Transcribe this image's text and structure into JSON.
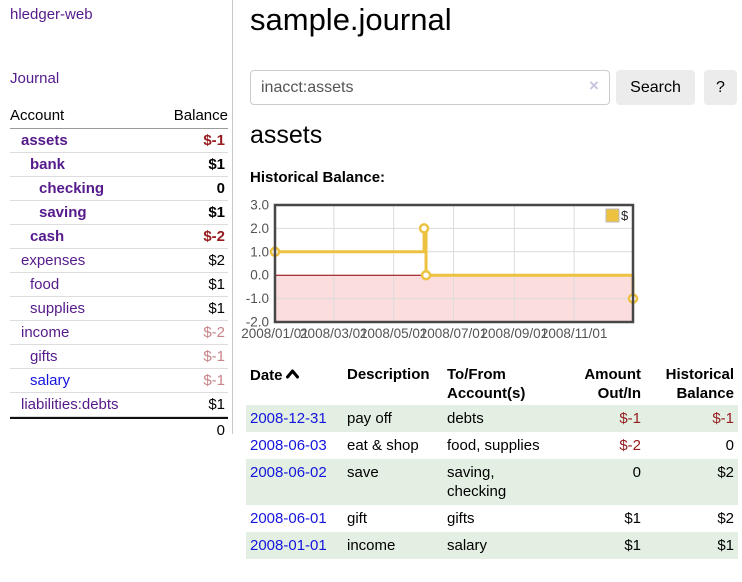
{
  "app": {
    "title": "hledger-web"
  },
  "sidebar": {
    "journal_link": "Journal",
    "accounts_table": {
      "headers": {
        "account": "Account",
        "balance": "Balance"
      },
      "rows": [
        {
          "name": "assets",
          "balance": "$-1"
        },
        {
          "name": "bank",
          "balance": "$1"
        },
        {
          "name": "checking",
          "balance": "0"
        },
        {
          "name": "saving",
          "balance": "$1"
        },
        {
          "name": "cash",
          "balance": "$-2"
        },
        {
          "name": "expenses",
          "balance": "$2"
        },
        {
          "name": "food",
          "balance": "$1"
        },
        {
          "name": "supplies",
          "balance": "$1"
        },
        {
          "name": "income",
          "balance": "$-2"
        },
        {
          "name": "gifts",
          "balance": "$-1"
        },
        {
          "name": "salary",
          "balance": "$-1"
        },
        {
          "name": "liabilities:debts",
          "balance": "$1"
        }
      ],
      "total": "0"
    }
  },
  "main": {
    "title": "sample.journal",
    "search": {
      "value": "inacct:assets",
      "clear_icon": "×",
      "button": "Search",
      "help": "?"
    },
    "account_heading": "assets",
    "chart_title": "Historical Balance:"
  },
  "chart_data": {
    "type": "line",
    "step": true,
    "series": [
      {
        "name": "$",
        "points": [
          [
            "2008-01-01",
            1
          ],
          [
            "2008-06-01",
            2
          ],
          [
            "2008-06-03",
            0
          ],
          [
            "2008-12-31",
            -1
          ]
        ]
      }
    ],
    "xrange": [
      "2008-01-01",
      "2008-12-31"
    ],
    "ylim": [
      -2,
      3
    ],
    "y_ticks": [
      "3.0",
      "2.0",
      "1.0",
      "0.0",
      "-1.0",
      "-2.0"
    ],
    "x_ticks": [
      "2008/01/01",
      "2008/03/01",
      "2008/05/01",
      "2008/07/01",
      "2008/09/01",
      "2008/11/01"
    ],
    "legend": "$",
    "legend_position": "top-right",
    "grid": true,
    "zero_line": true,
    "negative_region_shaded": true
  },
  "register": {
    "headers": {
      "date": "Date",
      "description": "Description",
      "tofrom": "To/From Account(s)",
      "amount": "Amount Out/In",
      "balance": "Historical Balance"
    },
    "rows": [
      {
        "date": "2008-12-31",
        "description": "pay off",
        "accounts": "debts",
        "amount": "$-1",
        "balance": "$-1"
      },
      {
        "date": "2008-06-03",
        "description": "eat & shop",
        "accounts": "food, supplies",
        "amount": "$-2",
        "balance": "0"
      },
      {
        "date": "2008-06-02",
        "description": "save",
        "accounts": "saving, checking",
        "amount": "0",
        "balance": "$2"
      },
      {
        "date": "2008-06-01",
        "description": "gift",
        "accounts": "gifts",
        "amount": "$1",
        "balance": "$2"
      },
      {
        "date": "2008-01-01",
        "description": "income",
        "accounts": "salary",
        "amount": "$1",
        "balance": "$1"
      }
    ]
  },
  "colors": {
    "link_purple": "#551a8b",
    "link_blue": "#1414dd",
    "negative_strong": "#961b1e",
    "negative_soft": "#c9848a",
    "row_green": "#e2efe2",
    "chart_line": "#edc240",
    "chart_negative_fill": "#fbdddd",
    "chart_zero_line": "#8b0000",
    "chart_grid": "#dcdcdc",
    "chart_border": "#474747",
    "axis_label": "#545454"
  }
}
